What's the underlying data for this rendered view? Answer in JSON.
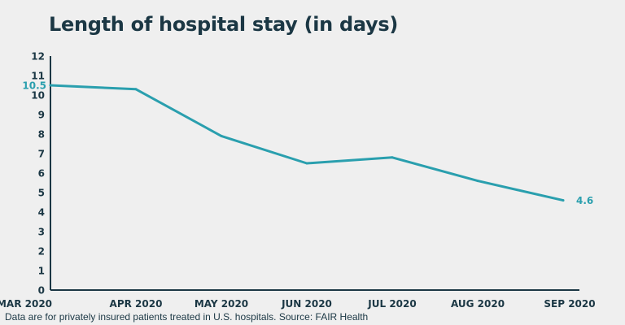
{
  "chart_data": {
    "type": "line",
    "title": "Length of hospital stay (in days)",
    "categories": [
      "MAR 2020",
      "APR 2020",
      "MAY 2020",
      "JUN 2020",
      "JUL 2020",
      "AUG 2020",
      "SEP 2020"
    ],
    "series": [
      {
        "values": [
          10.5,
          10.3,
          7.9,
          6.5,
          6.8,
          5.6,
          4.6
        ]
      }
    ],
    "ylim": [
      0,
      12
    ],
    "yticks": [
      0,
      1,
      2,
      3,
      4,
      5,
      6,
      7,
      8,
      9,
      10,
      11,
      12
    ],
    "data_labels": [
      {
        "index": 0,
        "text": "10.5"
      },
      {
        "index": 6,
        "text": "4.6"
      }
    ],
    "grid": false,
    "line_color": "#2a9fae",
    "axis_color": "#1b3744",
    "source": "Data are for privately insured patients treated in U.S. hospitals. Source: FAIR Health"
  }
}
